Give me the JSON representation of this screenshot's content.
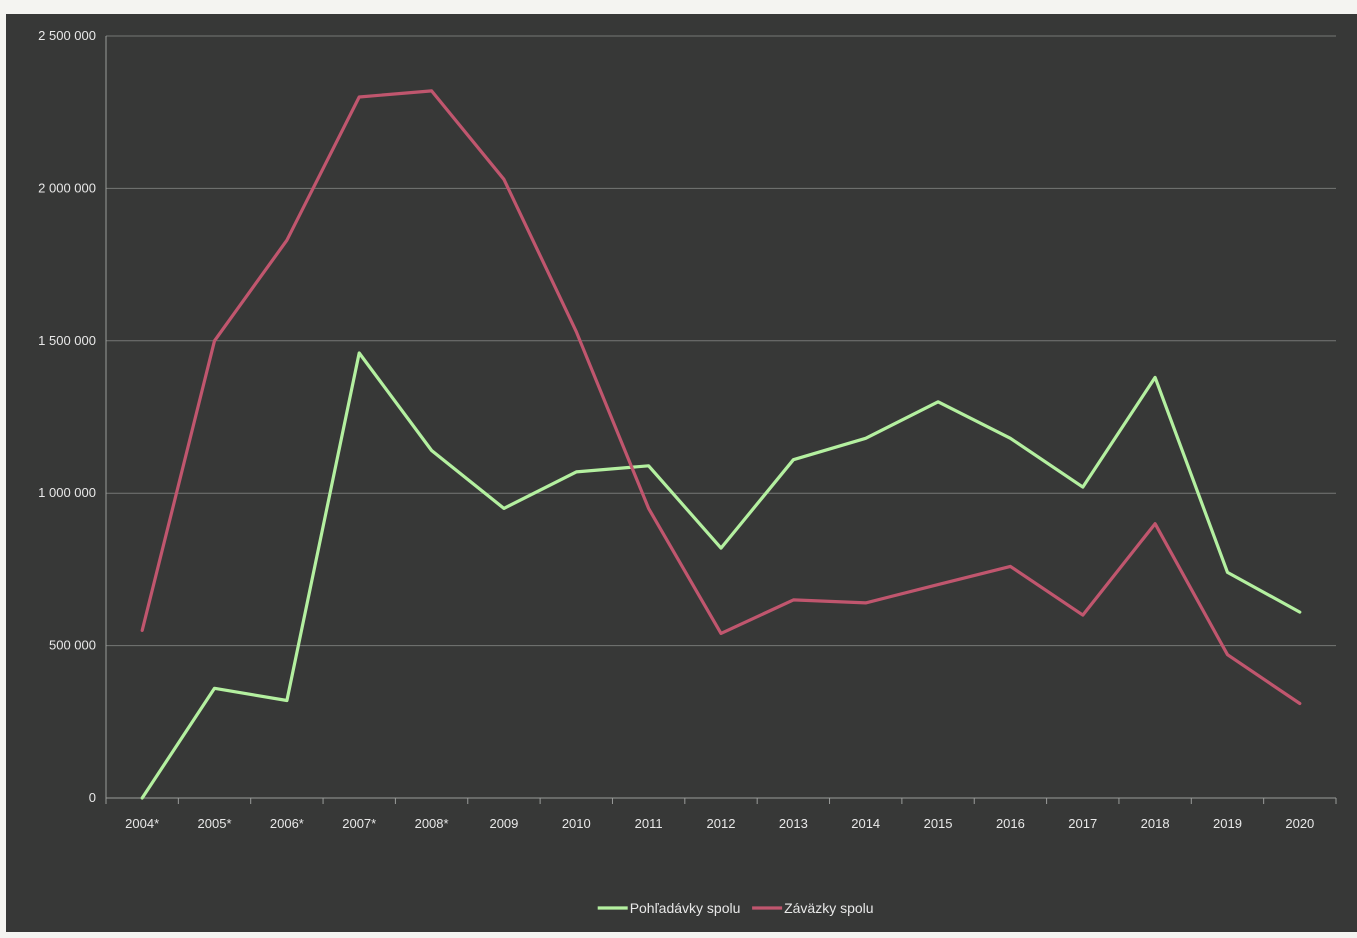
{
  "chart_data": {
    "type": "line",
    "title": "",
    "xlabel": "",
    "ylabel": "",
    "categories": [
      "2004*",
      "2005*",
      "2006*",
      "2007*",
      "2008*",
      "2009",
      "2010",
      "2011",
      "2012",
      "2013",
      "2014",
      "2015",
      "2016",
      "2017",
      "2018",
      "2019",
      "2020"
    ],
    "ylim": [
      0,
      2500000
    ],
    "y_ticks": [
      0,
      500000,
      1000000,
      1500000,
      2000000,
      2500000
    ],
    "y_tick_labels": [
      "0",
      "500 000",
      "1 000 000",
      "1 500 000",
      "2 000 000",
      "2 500 000"
    ],
    "grid": "horizontal",
    "legend_position": "bottom",
    "series": [
      {
        "name": "Pohľadávky spolu",
        "color": "#b4f0a0",
        "values": [
          0,
          360000,
          320000,
          1460000,
          1140000,
          950000,
          1070000,
          1090000,
          820000,
          1110000,
          1180000,
          1300000,
          1180000,
          1020000,
          1380000,
          740000,
          610000
        ]
      },
      {
        "name": "Záväzky spolu",
        "color": "#c0566e",
        "values": [
          550000,
          1500000,
          1830000,
          2300000,
          2320000,
          2030000,
          1530000,
          950000,
          540000,
          650000,
          640000,
          700000,
          760000,
          600000,
          900000,
          470000,
          310000
        ]
      }
    ]
  }
}
